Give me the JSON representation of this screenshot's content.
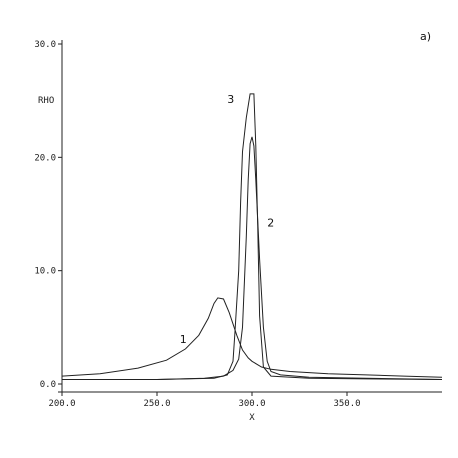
{
  "chart_data": {
    "type": "line",
    "panel_label": "a)",
    "xlabel": "X",
    "ylabel": "RHO",
    "xlim": [
      200,
      400
    ],
    "ylim": [
      0,
      30
    ],
    "xticks": [
      200,
      250,
      300,
      350
    ],
    "xtick_labels": [
      "200.0",
      "250.0",
      "300.0",
      "350.0"
    ],
    "yticks": [
      0,
      10,
      20,
      30
    ],
    "ytick_labels": [
      "0.0",
      "10.0",
      "20.0",
      "30.0"
    ],
    "grid": false,
    "series": [
      {
        "name": "1",
        "label_at": [
          262,
          3.6
        ],
        "points": [
          [
            200,
            0.7
          ],
          [
            220,
            0.9
          ],
          [
            240,
            1.4
          ],
          [
            255,
            2.1
          ],
          [
            265,
            3.1
          ],
          [
            272,
            4.3
          ],
          [
            277,
            5.8
          ],
          [
            280,
            7.1
          ],
          [
            282,
            7.6
          ],
          [
            285,
            7.5
          ],
          [
            288,
            6.3
          ],
          [
            292,
            4.3
          ],
          [
            295,
            3.0
          ],
          [
            298,
            2.3
          ],
          [
            300,
            2.0
          ],
          [
            305,
            1.5
          ],
          [
            310,
            1.3
          ],
          [
            320,
            1.1
          ],
          [
            340,
            0.9
          ],
          [
            360,
            0.8
          ],
          [
            380,
            0.7
          ],
          [
            400,
            0.6
          ]
        ]
      },
      {
        "name": "2",
        "label_at": [
          308,
          13.9
        ],
        "points": [
          [
            200,
            0.4
          ],
          [
            250,
            0.4
          ],
          [
            275,
            0.5
          ],
          [
            285,
            0.7
          ],
          [
            290,
            1.2
          ],
          [
            293,
            2.2
          ],
          [
            295,
            5.0
          ],
          [
            297,
            13.0
          ],
          [
            298,
            18.0
          ],
          [
            299,
            21.2
          ],
          [
            300,
            21.8
          ],
          [
            301,
            21.0
          ],
          [
            302,
            18.0
          ],
          [
            304,
            11.0
          ],
          [
            306,
            5.0
          ],
          [
            308,
            2.0
          ],
          [
            310,
            1.1
          ],
          [
            315,
            0.8
          ],
          [
            330,
            0.6
          ],
          [
            360,
            0.5
          ],
          [
            400,
            0.4
          ]
        ]
      },
      {
        "name": "3",
        "label_at": [
          287,
          24.8
        ],
        "points": [
          [
            200,
            0.4
          ],
          [
            250,
            0.4
          ],
          [
            280,
            0.5
          ],
          [
            287,
            0.8
          ],
          [
            290,
            2.0
          ],
          [
            291,
            4.5
          ],
          [
            293,
            10.0
          ],
          [
            294,
            16.0
          ],
          [
            295,
            20.5
          ],
          [
            297,
            23.5
          ],
          [
            299,
            25.6
          ],
          [
            301,
            25.6
          ],
          [
            302,
            21.0
          ],
          [
            303,
            14.0
          ],
          [
            304,
            6.0
          ],
          [
            306,
            1.5
          ],
          [
            310,
            0.7
          ],
          [
            330,
            0.5
          ],
          [
            360,
            0.45
          ],
          [
            400,
            0.4
          ]
        ]
      }
    ]
  }
}
